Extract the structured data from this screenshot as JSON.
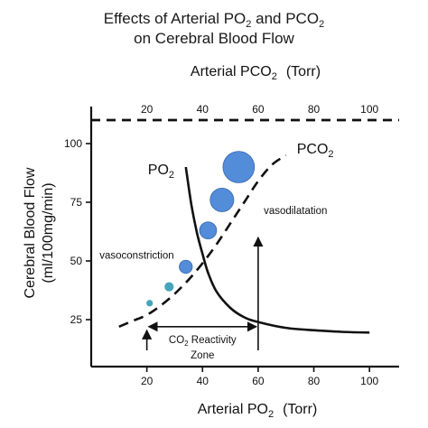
{
  "chart_data": {
    "type": "line",
    "title_line1": "Effects of Arterial PO",
    "title_sub1": "2",
    "title_mid": " and PCO",
    "title_sub2": "2",
    "title_line2": "on Cerebral Blood Flow",
    "xlabel_bottom": "Arterial PO",
    "xlabel_bottom_sub": "2",
    "xlabel_bottom_unit": "(Torr)",
    "xlabel_top": "Arterial PCO",
    "xlabel_top_sub": "2",
    "xlabel_top_unit": "(Torr)",
    "ylabel_line1": "Cerebral Blood Flow",
    "ylabel_line2": "(ml/100mg/min)",
    "xlim": [
      0,
      110
    ],
    "ylim": [
      5,
      115
    ],
    "x_ticks": [
      "20",
      "40",
      "60",
      "80",
      "100"
    ],
    "x_tick_values": [
      20,
      40,
      60,
      80,
      100
    ],
    "y_ticks": [
      "25",
      "50",
      "75",
      "100"
    ],
    "y_tick_values": [
      25,
      50,
      75,
      100
    ],
    "series": [
      {
        "name": "PO",
        "name_sub": "2",
        "style": "solid",
        "color": "#111111",
        "x": [
          34,
          36,
          38,
          40,
          42,
          45,
          50,
          55,
          60,
          70,
          80,
          90,
          100
        ],
        "y": [
          90,
          74,
          62,
          53,
          45,
          37,
          30,
          26,
          24,
          21.5,
          20.5,
          19.8,
          19.5
        ]
      },
      {
        "name": "PCO",
        "name_sub": "2",
        "style": "dashed",
        "color": "#111111",
        "x": [
          10,
          15,
          20,
          25,
          30,
          35,
          40,
          45,
          50,
          55,
          60,
          65,
          70
        ],
        "y": [
          22,
          24.5,
          27,
          31,
          36,
          42,
          49,
          57,
          66,
          75,
          84,
          91,
          95
        ]
      }
    ],
    "bubbles": {
      "color": "#4a86d8",
      "small_color": "#3aa0b8",
      "points": [
        {
          "x": 21,
          "y": 32,
          "size": 2.5
        },
        {
          "x": 28,
          "y": 39,
          "size": 3.5
        },
        {
          "x": 34,
          "y": 47.5,
          "size": 5
        },
        {
          "x": 42,
          "y": 63,
          "size": 6.5
        },
        {
          "x": 47,
          "y": 76,
          "size": 9
        },
        {
          "x": 53,
          "y": 90,
          "size": 12
        }
      ]
    },
    "top_dashed_line_y": 110,
    "annotations": {
      "vasoconstriction": "vasoconstriction",
      "vasodilatation": "vasodilatation",
      "zone_line1_a": "CO",
      "zone_line1_sub": "2",
      "zone_line1_b": " Reactivity",
      "zone_line2": "Zone",
      "zone_range": [
        20,
        60
      ],
      "zone_y": 22,
      "vasodilatation_arrow": {
        "x": 60,
        "y_from": 5,
        "y_to": 60
      }
    }
  }
}
